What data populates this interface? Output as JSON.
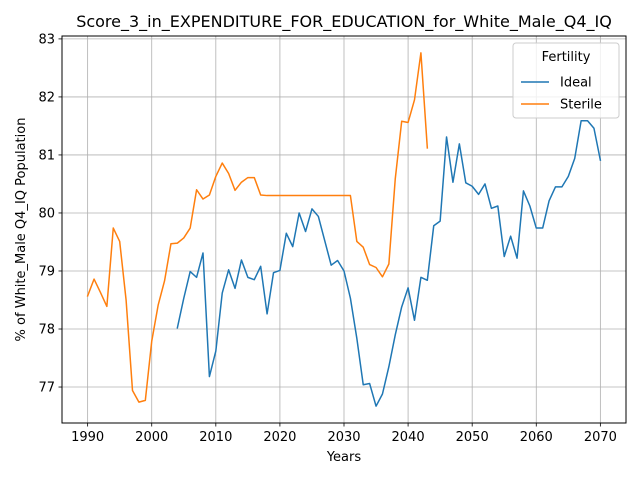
{
  "chart_data": {
    "type": "line",
    "title": "Score_3_in_EXPENDITURE_FOR_EDUCATION_for_White_Male_Q4_IQ",
    "xlabel": "Years",
    "ylabel": "% of White_Male Q4_IQ Population",
    "xlim": [
      1986,
      2074
    ],
    "ylim": [
      76.38,
      83.05
    ],
    "xticks": [
      1990,
      2000,
      2010,
      2020,
      2030,
      2040,
      2050,
      2060,
      2070
    ],
    "yticks": [
      77,
      78,
      79,
      80,
      81,
      82,
      83
    ],
    "grid": true,
    "legend": {
      "title": "Fertility",
      "placement": "top-right"
    },
    "series": [
      {
        "name": "Ideal",
        "color": "#1f77b4",
        "x": [
          2004,
          2005,
          2006,
          2007,
          2008,
          2009,
          2010,
          2011,
          2012,
          2013,
          2014,
          2015,
          2016,
          2017,
          2018,
          2019,
          2020,
          2021,
          2022,
          2023,
          2024,
          2025,
          2026,
          2027,
          2028,
          2029,
          2030,
          2031,
          2032,
          2033,
          2034,
          2035,
          2036,
          2037,
          2038,
          2039,
          2040,
          2041,
          2042,
          2043,
          2044,
          2045,
          2046,
          2047,
          2048,
          2049,
          2050,
          2051,
          2052,
          2053,
          2054,
          2055,
          2056,
          2057,
          2058,
          2059,
          2060,
          2061,
          2062,
          2063,
          2064,
          2065,
          2066,
          2067,
          2068,
          2069,
          2070
        ],
        "y": [
          78.02,
          78.53,
          78.99,
          78.89,
          79.31,
          77.18,
          77.62,
          78.62,
          79.02,
          78.7,
          79.19,
          78.89,
          78.85,
          79.08,
          78.26,
          78.97,
          79.01,
          79.65,
          79.42,
          80.0,
          79.68,
          80.07,
          79.94,
          79.52,
          79.1,
          79.18,
          79.0,
          78.53,
          77.84,
          77.04,
          77.06,
          76.67,
          76.88,
          77.35,
          77.9,
          78.38,
          78.71,
          78.15,
          78.89,
          78.84,
          79.78,
          79.86,
          81.31,
          80.53,
          81.19,
          80.52,
          80.46,
          80.32,
          80.5,
          80.08,
          80.12,
          79.25,
          79.6,
          79.22,
          80.38,
          80.12,
          79.74,
          79.74,
          80.21,
          80.45,
          80.45,
          80.63,
          80.94,
          81.59,
          81.59,
          81.46,
          80.91
        ]
      },
      {
        "name": "Sterile",
        "color": "#ff7f0e",
        "x": [
          1990,
          1991,
          1992,
          1993,
          1994,
          1995,
          1996,
          1997,
          1998,
          1999,
          2000,
          2001,
          2002,
          2003,
          2004,
          2005,
          2006,
          2007,
          2008,
          2009,
          2010,
          2011,
          2012,
          2013,
          2014,
          2015,
          2016,
          2017,
          2018,
          2019,
          2020,
          2021,
          2022,
          2023,
          2024,
          2025,
          2026,
          2027,
          2028,
          2029,
          2030,
          2031,
          2032,
          2033,
          2034,
          2035,
          2036,
          2037,
          2038,
          2039,
          2040,
          2041,
          2042,
          2043
        ],
        "y": [
          78.57,
          78.86,
          78.63,
          78.39,
          79.74,
          79.51,
          78.5,
          76.94,
          76.74,
          76.77,
          77.79,
          78.41,
          78.83,
          79.47,
          79.48,
          79.57,
          79.74,
          80.4,
          80.24,
          80.31,
          80.63,
          80.86,
          80.68,
          80.39,
          80.53,
          80.61,
          80.61,
          80.31,
          80.3,
          80.3,
          80.3,
          80.3,
          80.3,
          80.3,
          80.3,
          80.3,
          80.3,
          80.3,
          80.3,
          80.3,
          80.3,
          80.3,
          79.51,
          79.41,
          79.11,
          79.06,
          78.9,
          79.12,
          80.59,
          81.58,
          81.56,
          81.95,
          82.76,
          81.12
        ]
      }
    ]
  }
}
